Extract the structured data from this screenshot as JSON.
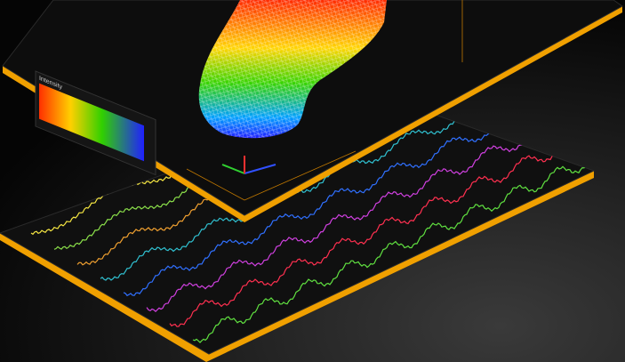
{
  "panel_top": {
    "legend_title": "Intensity"
  }
}
